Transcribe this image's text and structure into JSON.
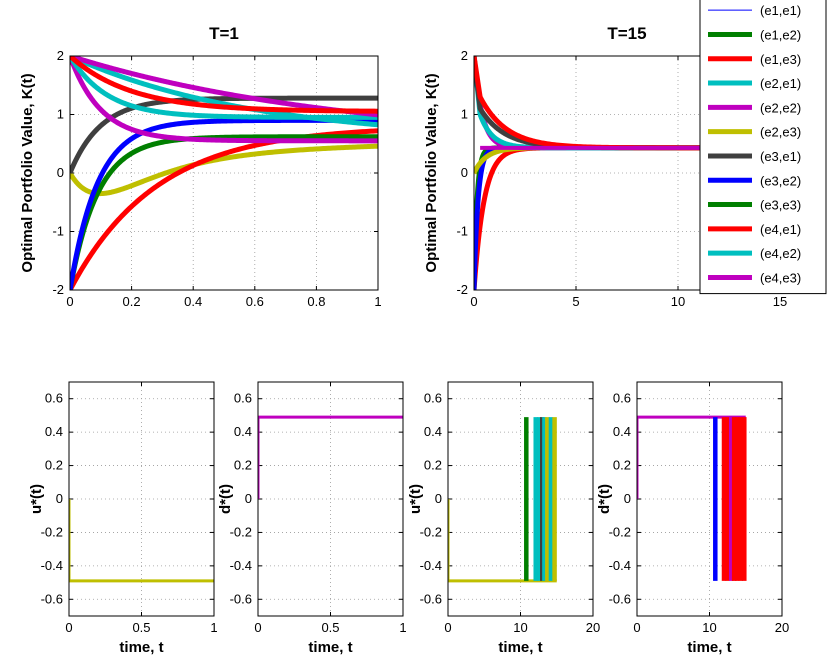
{
  "legend": [
    "(e1,e1)",
    "(e1,e2)",
    "(e1,e3)",
    "(e2,e1)",
    "(e2,e2)",
    "(e2,e3)",
    "(e3,e1)",
    "(e3,e2)",
    "(e3,e3)",
    "(e4,e1)",
    "(e4,e2)",
    "(e4,e3)"
  ],
  "legend_colors": [
    "#0000ff",
    "#007f00",
    "#ff0000",
    "#00bfbf",
    "#bf00bf",
    "#bfbf00",
    "#3f3f3f",
    "#0000ff",
    "#007f00",
    "#ff0000",
    "#00bfbf",
    "#bf00bf"
  ],
  "chart_data": [
    {
      "type": "line",
      "title": "T=1",
      "xlabel": "",
      "ylabel": "Optimal Portfolio Value, K(t)",
      "xlim": [
        0,
        1
      ],
      "ylim": [
        -2,
        2
      ],
      "xticks": [
        "0",
        "0.2",
        "0.4",
        "0.6",
        "0.8",
        "1"
      ],
      "yticks": [
        "-2",
        "-1",
        "0",
        "1",
        "2"
      ],
      "series": [
        {
          "name": "(e2,e3)",
          "color": "#bfbf00",
          "k0": 0,
          "kinf": 0.55,
          "tau": 0.55,
          "bump": -0.45,
          "btau": 0.12
        },
        {
          "name": "(e1,e3)",
          "color": "#ff0000",
          "k0": -2,
          "kinf": 0.8,
          "tau": 0.28
        },
        {
          "name": "(e1,e2)",
          "color": "#007f00",
          "k0": -2,
          "kinf": 0.62,
          "tau": 0.09
        },
        {
          "name": "(e3,e2)",
          "color": "#0000ff",
          "k0": -2,
          "kinf": 0.9,
          "tau": 0.09
        },
        {
          "name": "(e3,e1)",
          "color": "#3f3f3f",
          "k0": 0,
          "kinf": 1.28,
          "tau": 0.1
        },
        {
          "name": "(e2,e2)",
          "color": "#bf00bf",
          "k0": 2,
          "kinf": 0.55,
          "tau": 0.1
        },
        {
          "name": "(e2,e1)",
          "color": "#00bfbf",
          "k0": 2,
          "kinf": 0.55,
          "tau": 0.6
        },
        {
          "name": "(e4,e2)",
          "color": "#00bfbf",
          "k0": 2,
          "kinf": 0.95,
          "tau": 0.12
        },
        {
          "name": "(e4,e3)",
          "color": "#bf00bf",
          "k0": 2,
          "kinf": 0.5,
          "tau": 0.9
        },
        {
          "name": "(e4,e1)",
          "color": "#ff0000",
          "k0": 2,
          "kinf": 1.05,
          "tau": 0.2
        }
      ]
    },
    {
      "type": "line",
      "title": "T=15",
      "xlabel": "",
      "ylabel": "Optimal Portfolio Value, K(t)",
      "xlim": [
        0,
        15
      ],
      "ylim": [
        -2,
        2
      ],
      "xticks": [
        "0",
        "5",
        "10",
        "15"
      ],
      "yticks": [
        "-2",
        "-1",
        "0",
        "1",
        "2"
      ],
      "steady": 0.43,
      "series": [
        {
          "name": "(e1,e3)",
          "color": "#ff0000",
          "k0": -2,
          "kinf": 0.43,
          "tau": 0.5
        },
        {
          "name": "(e1,e2)",
          "color": "#007f00",
          "k0": -2,
          "kinf": 0.43,
          "tau": 0.15
        },
        {
          "name": "(e3,e2)",
          "color": "#0000ff",
          "k0": -2,
          "kinf": 0.43,
          "tau": 0.2
        },
        {
          "name": "(e2,e3)",
          "color": "#bfbf00",
          "k0": 0,
          "kinf": 0.43,
          "tau": 0.6
        },
        {
          "name": "(e2,e2)",
          "color": "#bf00bf",
          "k0": 2,
          "kinf": 0.43,
          "tau": 0.4
        },
        {
          "name": "(e4,e2)",
          "color": "#00bfbf",
          "k0": 2,
          "kinf": 0.43,
          "tau": 0.6,
          "peak": 1.0
        },
        {
          "name": "(e3,e1)",
          "color": "#3f3f3f",
          "k0": 2,
          "kinf": 0.43,
          "tau": 1.2,
          "peak": 1.1
        },
        {
          "name": "(e4,e1)",
          "color": "#ff0000",
          "k0": 2,
          "kinf": 0.43,
          "tau": 1.3,
          "peak": 1.3
        }
      ]
    },
    {
      "type": "line",
      "title": "",
      "xlabel": "time, t",
      "ylabel": "u*(t)",
      "xlim": [
        0,
        1
      ],
      "ylim": [
        -0.7,
        0.7
      ],
      "xticks": [
        "0",
        "0.5",
        "1"
      ],
      "yticks": [
        "-0.6",
        "-0.4",
        "-0.2",
        "0",
        "0.2",
        "0.4",
        "0.6"
      ],
      "series": [
        {
          "name": "control",
          "color": "#bfbf00",
          "values": [
            [
              0,
              0
            ],
            [
              0,
              -0.49
            ],
            [
              1,
              -0.49
            ]
          ]
        }
      ]
    },
    {
      "type": "line",
      "title": "",
      "xlabel": "time, t",
      "ylabel": "d*(t)",
      "xlim": [
        0,
        1
      ],
      "ylim": [
        -0.7,
        0.7
      ],
      "xticks": [
        "0",
        "0.5",
        "1"
      ],
      "yticks": [
        "-0.6",
        "-0.4",
        "-0.2",
        "0",
        "0.2",
        "0.4",
        "0.6"
      ],
      "series": [
        {
          "name": "control",
          "color": "#bf00bf",
          "values": [
            [
              0,
              0
            ],
            [
              0,
              0.49
            ],
            [
              1,
              0.49
            ]
          ]
        }
      ]
    },
    {
      "type": "line",
      "title": "",
      "xlabel": "time, t",
      "ylabel": "u*(t)",
      "xlim": [
        0,
        20
      ],
      "ylim": [
        -0.7,
        0.7
      ],
      "xticks": [
        "0",
        "10",
        "20"
      ],
      "yticks": [
        "-0.6",
        "-0.4",
        "-0.2",
        "0",
        "0.2",
        "0.4",
        "0.6"
      ],
      "base": {
        "color": "#bfbf00",
        "values": [
          [
            0,
            0
          ],
          [
            0,
            -0.49
          ],
          [
            15,
            -0.49
          ]
        ]
      },
      "switches": [
        {
          "t": 10.8,
          "color": "#007f00"
        },
        {
          "t": 12.1,
          "color": "#00bfbf"
        },
        {
          "t": 12.6,
          "color": "#00bfbf"
        },
        {
          "t": 13.0,
          "color": "#3f3f3f"
        },
        {
          "t": 13.3,
          "color": "#00bfbf"
        },
        {
          "t": 13.7,
          "color": "#bfbf00"
        },
        {
          "t": 14.2,
          "color": "#00bfbf"
        },
        {
          "t": 14.7,
          "color": "#bfbf00"
        }
      ],
      "switch_low": -0.49,
      "switch_high": 0.49
    },
    {
      "type": "line",
      "title": "",
      "xlabel": "time, t",
      "ylabel": "d*(t)",
      "xlim": [
        0,
        20
      ],
      "ylim": [
        -0.7,
        0.7
      ],
      "xticks": [
        "0",
        "10",
        "20"
      ],
      "yticks": [
        "-0.6",
        "-0.4",
        "-0.2",
        "0",
        "0.2",
        "0.4",
        "0.6"
      ],
      "base": {
        "color": "#bf00bf",
        "values": [
          [
            0,
            0
          ],
          [
            0,
            0.49
          ],
          [
            15,
            0.49
          ]
        ]
      },
      "switches": [
        {
          "t": 10.8,
          "color": "#0000ff"
        },
        {
          "t": 12.0,
          "color": "#ff0000"
        },
        {
          "t": 12.5,
          "color": "#ff0000"
        },
        {
          "t": 13.0,
          "color": "#bf00bf"
        },
        {
          "t": 13.4,
          "color": "#ff0000"
        },
        {
          "t": 13.8,
          "color": "#ff0000"
        },
        {
          "t": 14.3,
          "color": "#ff0000"
        },
        {
          "t": 14.8,
          "color": "#ff0000"
        }
      ],
      "switch_low": -0.49,
      "switch_high": 0.49
    }
  ]
}
